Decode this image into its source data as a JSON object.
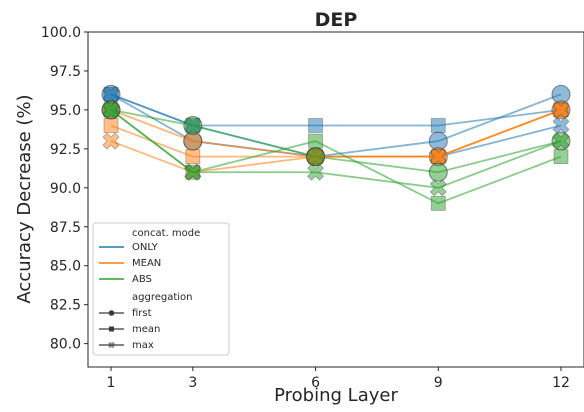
{
  "chart_data": {
    "type": "line",
    "title": "DEP",
    "xlabel": "Probing Layer",
    "ylabel": "Accuracy Decrease (%)",
    "x": [
      1,
      3,
      6,
      9,
      12
    ],
    "x_ticks": [
      "1",
      "3",
      "6",
      "9",
      "12"
    ],
    "ylim": [
      78.5,
      100.0
    ],
    "y_ticks": [
      "80.0",
      "82.5",
      "85.0",
      "87.5",
      "90.0",
      "92.5",
      "95.0",
      "97.5",
      "100.0"
    ],
    "grid": false,
    "legend": {
      "placement": "lower-left",
      "hue_title": "concat. mode",
      "style_title": "aggregation",
      "hue_entries": [
        "ONLY",
        "MEAN",
        "ABS"
      ],
      "style_entries": [
        "first",
        "mean",
        "max"
      ]
    },
    "colors": {
      "ONLY": "#1f77b4",
      "MEAN": "#ff7f0e",
      "ABS": "#2ca02c"
    },
    "series": [
      {
        "mode": "ONLY",
        "aggregation": "first",
        "values": [
          96,
          93,
          92,
          93,
          96
        ]
      },
      {
        "mode": "ONLY",
        "aggregation": "mean",
        "values": [
          96,
          94,
          94,
          94,
          95
        ]
      },
      {
        "mode": "ONLY",
        "aggregation": "max",
        "values": [
          96,
          94,
          92,
          92,
          94
        ]
      },
      {
        "mode": "MEAN",
        "aggregation": "first",
        "values": [
          95,
          93,
          92,
          92,
          95
        ]
      },
      {
        "mode": "MEAN",
        "aggregation": "mean",
        "values": [
          94,
          92,
          92,
          92,
          95
        ]
      },
      {
        "mode": "MEAN",
        "aggregation": "max",
        "values": [
          93,
          91,
          92,
          92,
          95
        ]
      },
      {
        "mode": "ABS",
        "aggregation": "first",
        "values": [
          95,
          94,
          92,
          91,
          93
        ]
      },
      {
        "mode": "ABS",
        "aggregation": "mean",
        "values": [
          95,
          91,
          93,
          89,
          92
        ]
      },
      {
        "mode": "ABS",
        "aggregation": "max",
        "values": [
          95,
          91,
          91,
          90,
          93
        ]
      }
    ]
  }
}
